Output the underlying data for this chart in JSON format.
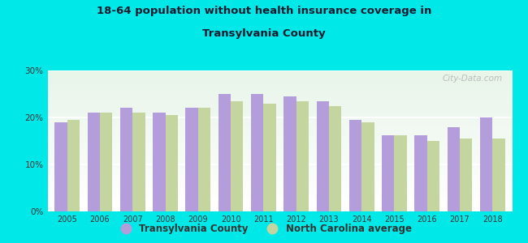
{
  "title_line1": "18-64 population without health insurance coverage in",
  "title_line2": "Transylvania County",
  "years": [
    2005,
    2006,
    2007,
    2008,
    2009,
    2010,
    2011,
    2012,
    2013,
    2014,
    2015,
    2016,
    2017,
    2018
  ],
  "transylvania": [
    19.0,
    21.0,
    22.0,
    21.0,
    22.0,
    25.0,
    25.0,
    24.5,
    23.5,
    19.5,
    16.2,
    16.2,
    18.0,
    20.0
  ],
  "nc_average": [
    19.5,
    21.0,
    21.0,
    20.5,
    22.0,
    23.5,
    23.0,
    23.5,
    22.5,
    19.0,
    16.2,
    15.0,
    15.5,
    15.5
  ],
  "bar_color_transylvania": "#b39ddb",
  "bar_color_nc": "#c5d5a0",
  "background_color": "#00e8e8",
  "plot_bg_top": "#e8f5e9",
  "plot_bg_bottom": "#ffffff",
  "yticks": [
    0,
    10,
    20,
    30
  ],
  "ylim": [
    0,
    30
  ],
  "legend_transylvania": "Transylvania County",
  "legend_nc": "North Carolina average",
  "watermark": "City-Data.com"
}
